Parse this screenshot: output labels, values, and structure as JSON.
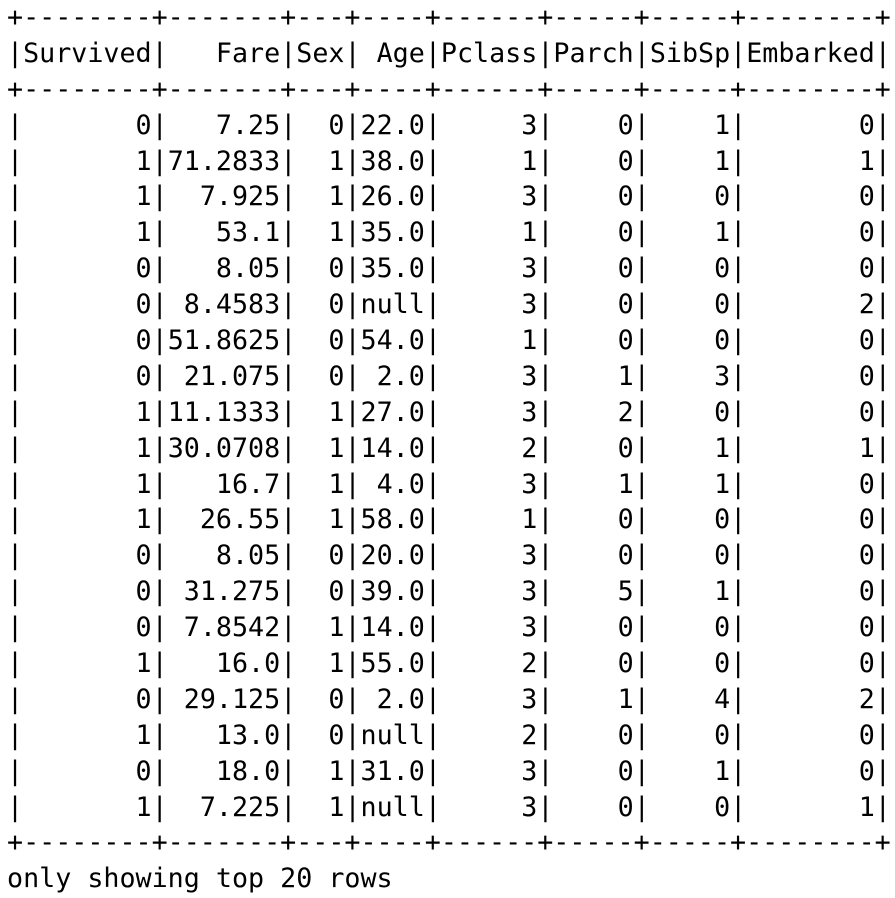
{
  "table": {
    "columns": [
      "Survived",
      "Fare",
      "Sex",
      "Age",
      "Pclass",
      "Parch",
      "SibSp",
      "Embarked"
    ],
    "rows": [
      [
        "0",
        "7.25",
        "0",
        "22.0",
        "3",
        "0",
        "1",
        "0"
      ],
      [
        "1",
        "71.2833",
        "1",
        "38.0",
        "1",
        "0",
        "1",
        "1"
      ],
      [
        "1",
        "7.925",
        "1",
        "26.0",
        "3",
        "0",
        "0",
        "0"
      ],
      [
        "1",
        "53.1",
        "1",
        "35.0",
        "1",
        "0",
        "1",
        "0"
      ],
      [
        "0",
        "8.05",
        "0",
        "35.0",
        "3",
        "0",
        "0",
        "0"
      ],
      [
        "0",
        "8.4583",
        "0",
        "null",
        "3",
        "0",
        "0",
        "2"
      ],
      [
        "0",
        "51.8625",
        "0",
        "54.0",
        "1",
        "0",
        "0",
        "0"
      ],
      [
        "0",
        "21.075",
        "0",
        "2.0",
        "3",
        "1",
        "3",
        "0"
      ],
      [
        "1",
        "11.1333",
        "1",
        "27.0",
        "3",
        "2",
        "0",
        "0"
      ],
      [
        "1",
        "30.0708",
        "1",
        "14.0",
        "2",
        "0",
        "1",
        "1"
      ],
      [
        "1",
        "16.7",
        "1",
        "4.0",
        "3",
        "1",
        "1",
        "0"
      ],
      [
        "1",
        "26.55",
        "1",
        "58.0",
        "1",
        "0",
        "0",
        "0"
      ],
      [
        "0",
        "8.05",
        "0",
        "20.0",
        "3",
        "0",
        "0",
        "0"
      ],
      [
        "0",
        "31.275",
        "0",
        "39.0",
        "3",
        "5",
        "1",
        "0"
      ],
      [
        "0",
        "7.8542",
        "1",
        "14.0",
        "3",
        "0",
        "0",
        "0"
      ],
      [
        "1",
        "16.0",
        "1",
        "55.0",
        "2",
        "0",
        "0",
        "0"
      ],
      [
        "0",
        "29.125",
        "0",
        "2.0",
        "3",
        "1",
        "4",
        "2"
      ],
      [
        "1",
        "13.0",
        "0",
        "null",
        "2",
        "0",
        "0",
        "0"
      ],
      [
        "0",
        "18.0",
        "1",
        "31.0",
        "3",
        "0",
        "1",
        "0"
      ],
      [
        "1",
        "7.225",
        "1",
        "null",
        "3",
        "0",
        "0",
        "1"
      ]
    ]
  },
  "footer": "only showing top 20 rows"
}
